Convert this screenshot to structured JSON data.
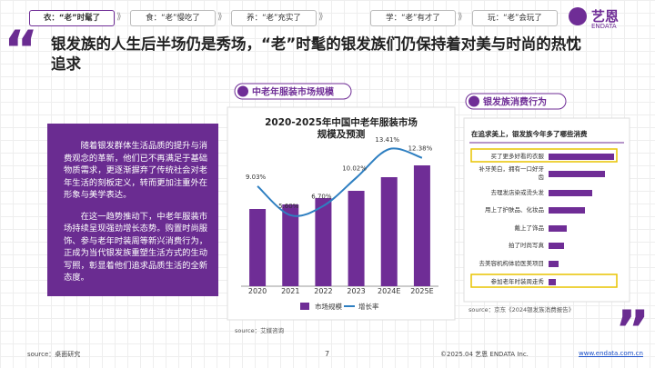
{
  "nav": [
    "衣：“老”时髦了",
    "食：“老”慢吃了",
    "养：“老”充实了",
    "学：“老”有才了",
    "玩：“老”会玩了"
  ],
  "logo": {
    "name": "艺恩",
    "sub": "ENDATA"
  },
  "heading": "银发族的人生后半场仍是秀场，“老”时髦的银发族们仍保持着对美与时尚的热忱追求",
  "text_box": {
    "paragraphs": [
      "随着银发群体生活品质的提升与消费观念的革新，他们已不再满足于基础物质需求，更逐渐摒弃了传统社会对老年生活的刻板定义，转而更加注重外在形象与美学表达。",
      "在这一趋势推动下，中老年服装市场持续呈现强劲增长态势。购置时尚服饰、参与老年时装周等新兴消费行为，正成为当代银发族重塑生活方式的生动写照，彰显着他们追求品质生活的全新态度。"
    ]
  },
  "chart_data": [
    {
      "type": "combo",
      "section_label": "中老年服装市场规模",
      "title": "2020-2025年中国中老年服装市场规模及预测",
      "categories": [
        "2020",
        "2021",
        "2022",
        "2023",
        "2024E",
        "2025E"
      ],
      "series": [
        {
          "name": "市场规模",
          "color": "#6f2d96",
          "values": [
            85,
            90,
            97,
            105,
            120,
            133
          ]
        },
        {
          "name": "增长率",
          "color": "#2e7fc1",
          "axis": "y2",
          "values": [
            9.03,
            5.6,
            6.7,
            10.02,
            13.41,
            12.38
          ],
          "value_labels": [
            "9.03%",
            "5.60%",
            "6.70%",
            "10.02%",
            "13.41%",
            "12.38%"
          ]
        }
      ],
      "ylim": [
        0,
        150
      ],
      "y2lim": [
        0,
        16
      ],
      "source": "source：艾媒咨询"
    },
    {
      "type": "barh",
      "section_label": "银发族消费行为",
      "subtitle": "在追求美上，银发族今年多了哪些消费",
      "categories": [
        "买了更多好看的衣服",
        "补牙美白，拥有一口好牙齿",
        "去理发店染或烫头发",
        "用上了护肤品、化妆品",
        "戴上了饰品",
        "拍了时尚写真",
        "去美容机构体验医美项目",
        "参加老年时装周走秀"
      ],
      "values": [
        72,
        62,
        48,
        40,
        20,
        17,
        11,
        8
      ],
      "color": "#6f2d96",
      "xlim": [
        0,
        80
      ],
      "highlighted": [
        0,
        7
      ],
      "source": "source：京东《2024银发族消费报告》"
    }
  ],
  "footer": {
    "source": "source：桌面研究",
    "page": "7",
    "copyright": "©2025.04 艺恩 ENDATA Inc.",
    "url": "www.endata.com.cn"
  }
}
